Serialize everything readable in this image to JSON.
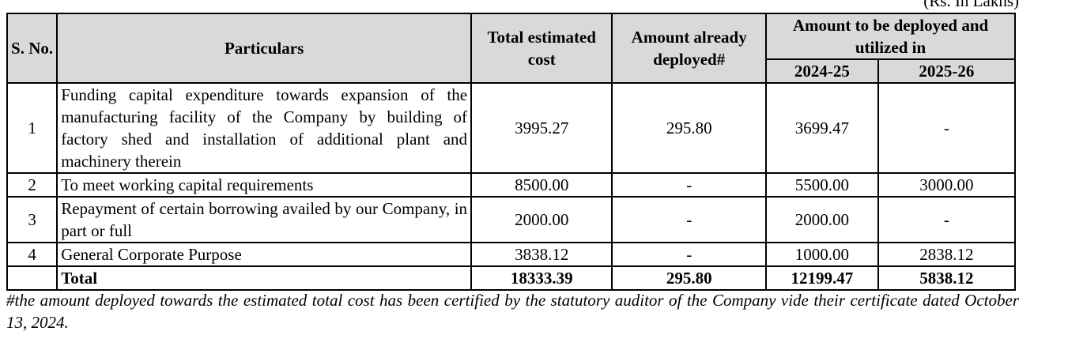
{
  "units_note": "(Rs. In Lakhs)",
  "table": {
    "headers": {
      "sno": "S. No.",
      "particulars": "Particulars",
      "total_cost": "Total estimated cost",
      "deployed": "Amount already deployed#",
      "to_deploy_group": "Amount to be deployed and utilized in",
      "year1": "2024-25",
      "year2": "2025-26"
    },
    "rows": [
      {
        "sno": "1",
        "particulars": "Funding capital expenditure towards expansion of the manufacturing facility of the Company by building of factory shed and installation of additional plant and machinery therein",
        "total_cost": "3995.27",
        "deployed": "295.80",
        "year1": "3699.47",
        "year2": "-"
      },
      {
        "sno": "2",
        "particulars": "To meet working capital requirements",
        "total_cost": "8500.00",
        "deployed": "-",
        "year1": "5500.00",
        "year2": "3000.00"
      },
      {
        "sno": "3",
        "particulars": "Repayment of certain borrowing availed by our Company, in part or full",
        "total_cost": "2000.00",
        "deployed": "-",
        "year1": "2000.00",
        "year2": "-"
      },
      {
        "sno": "4",
        "particulars": "General Corporate Purpose",
        "total_cost": "3838.12",
        "deployed": "-",
        "year1": "1000.00",
        "year2": "2838.12"
      }
    ],
    "total": {
      "sno": "",
      "label": "Total",
      "total_cost": "18333.39",
      "deployed": "295.80",
      "year1": "12199.47",
      "year2": "5838.12"
    }
  },
  "footnote": "#the amount deployed towards the estimated total cost has been certified by the statutory auditor of the Company vide their certificate dated October 13, 2024."
}
